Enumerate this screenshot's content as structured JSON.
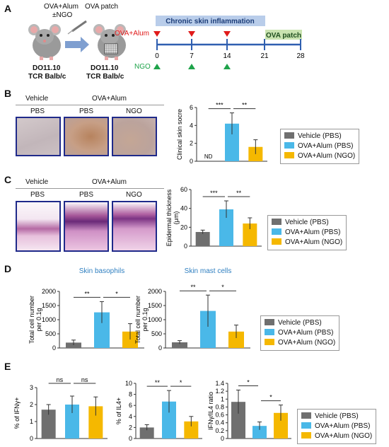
{
  "colors": {
    "vehicle": "#6f6f6f",
    "ova_pbs": "#4ab8e8",
    "ova_ngo": "#f5b800",
    "timeline_blue": "#2f5fb0",
    "band": "#b9cdea",
    "ova_patch_band": "#c9e3b0",
    "red_marker": "#e01b1b",
    "green_marker": "#1ea34a",
    "photo_border": "#1f2a8a"
  },
  "panelA": {
    "letter": "A",
    "mouse_left_top1": "OVA+Alum",
    "mouse_left_top2": "±NGO",
    "mouse_right_top": "OVA patch",
    "mouse_left_bottom1": "DO11.10",
    "mouse_left_bottom2": "TCR Balb/c",
    "mouse_right_bottom1": "DO11.10",
    "mouse_right_bottom2": "TCR Balb/c",
    "band_label": "Chronic skin inflammation",
    "patch_label": "OVA patch",
    "ova_alum_label": "OVA+Alum",
    "ngo_label": "NGO",
    "ticks": [
      "0",
      "7",
      "14",
      "21",
      "28"
    ]
  },
  "panelB": {
    "letter": "B",
    "vehicle": "Vehicle",
    "ovaalum": "OVA+Alum",
    "pbs1": "PBS",
    "pbs2": "PBS",
    "ngo": "NGO",
    "nd": "ND"
  },
  "panelC": {
    "letter": "C",
    "vehicle": "Vehicle",
    "ovaalum": "OVA+Alum",
    "pbs1": "PBS",
    "pbs2": "PBS",
    "ngo": "NGO"
  },
  "panelD": {
    "letter": "D"
  },
  "panelE": {
    "letter": "E"
  },
  "legend": {
    "entries": [
      "Vehicle (PBS)",
      "OVA+Alum (PBS)",
      "OVA+Alum (NGO)"
    ]
  },
  "chart_data": [
    {
      "id": "B",
      "type": "bar",
      "categories": [
        "Vehicle (PBS)",
        "OVA+Alum (PBS)",
        "OVA+Alum (NGO)"
      ],
      "values": [
        0,
        4.2,
        1.6
      ],
      "errors": [
        0,
        1.2,
        0.8
      ],
      "title": "",
      "xlabel": "",
      "ylabel": "Clinical skin socre",
      "ylim": [
        0,
        6
      ],
      "yticks": [
        "0",
        "2",
        "4",
        "6"
      ],
      "sig": [
        {
          "from": 0,
          "to": 1,
          "label": "***"
        },
        {
          "from": 1,
          "to": 2,
          "label": "**"
        }
      ],
      "annotations": [
        {
          "bar": 0,
          "text": "ND"
        }
      ]
    },
    {
      "id": "C",
      "type": "bar",
      "categories": [
        "Vehicle (PBS)",
        "OVA+Alum (PBS)",
        "OVA+Alum (NGO)"
      ],
      "values": [
        15,
        39,
        24
      ],
      "errors": [
        2,
        9,
        6
      ],
      "title": "",
      "xlabel": "",
      "ylabel": "Epidermal thickness (μm)",
      "ylim": [
        0,
        60
      ],
      "yticks": [
        "0",
        "20",
        "40",
        "60"
      ],
      "sig": [
        {
          "from": 0,
          "to": 1,
          "label": "***"
        },
        {
          "from": 1,
          "to": 2,
          "label": "**"
        }
      ]
    },
    {
      "id": "D1",
      "type": "bar",
      "categories": [
        "Vehicle (PBS)",
        "OVA+Alum (PBS)",
        "OVA+Alum (NGO)"
      ],
      "values": [
        190,
        1260,
        580
      ],
      "errors": [
        90,
        380,
        280
      ],
      "title": "Skin basophils",
      "xlabel": "",
      "ylabel": "Total cell number per 0.1g",
      "ylim": [
        0,
        2000
      ],
      "yticks": [
        "0",
        "500",
        "1000",
        "1500",
        "2000"
      ],
      "sig": [
        {
          "from": 0,
          "to": 1,
          "label": "**"
        },
        {
          "from": 1,
          "to": 2,
          "label": "*"
        }
      ]
    },
    {
      "id": "D2",
      "type": "bar",
      "categories": [
        "Vehicle (PBS)",
        "OVA+Alum (PBS)",
        "OVA+Alum (NGO)"
      ],
      "values": [
        200,
        1310,
        580
      ],
      "errors": [
        60,
        560,
        230
      ],
      "title": "Skin mast cells",
      "xlabel": "",
      "ylabel": "Total cell number per 0.1g",
      "ylim": [
        0,
        2000
      ],
      "yticks": [
        "0",
        "500",
        "1000",
        "1500",
        "2000"
      ],
      "sig": [
        {
          "from": 0,
          "to": 1,
          "label": "**"
        },
        {
          "from": 1,
          "to": 2,
          "label": "*"
        }
      ]
    },
    {
      "id": "E1",
      "type": "bar",
      "categories": [
        "Vehicle (PBS)",
        "OVA+Alum (PBS)",
        "OVA+Alum (NGO)"
      ],
      "values": [
        1.7,
        2.0,
        1.9
      ],
      "errors": [
        0.3,
        0.5,
        0.55
      ],
      "title": "",
      "xlabel": "",
      "ylabel": "% of IFNγ+",
      "ylim": [
        0,
        3
      ],
      "yticks": [
        "0",
        "1",
        "2",
        "3"
      ],
      "sig": [
        {
          "from": 0,
          "to": 1,
          "label": "ns"
        },
        {
          "from": 1,
          "to": 2,
          "label": "ns"
        }
      ]
    },
    {
      "id": "E2",
      "type": "bar",
      "categories": [
        "Vehicle (PBS)",
        "OVA+Alum (PBS)",
        "OVA+Alum (NGO)"
      ],
      "values": [
        2.0,
        6.7,
        3.1
      ],
      "errors": [
        0.5,
        2.0,
        0.9
      ],
      "title": "",
      "xlabel": "",
      "ylabel": "% of IL4+",
      "ylim": [
        0,
        10
      ],
      "yticks": [
        "0",
        "2",
        "4",
        "6",
        "8",
        "10"
      ],
      "sig": [
        {
          "from": 0,
          "to": 1,
          "label": "**"
        },
        {
          "from": 1,
          "to": 2,
          "label": "*"
        }
      ]
    },
    {
      "id": "E3",
      "type": "bar",
      "categories": [
        "Vehicle (PBS)",
        "OVA+Alum (PBS)",
        "OVA+Alum (NGO)"
      ],
      "values": [
        0.93,
        0.32,
        0.65
      ],
      "errors": [
        0.3,
        0.1,
        0.2
      ],
      "title": "",
      "xlabel": "",
      "ylabel": "IFNγ/IL4 ratio",
      "ylim": [
        0,
        1.4
      ],
      "yticks": [
        "0",
        "0.2",
        "0.4",
        "0.6",
        "0.8",
        "1",
        "1.2",
        "1.4"
      ],
      "sig": [
        {
          "from": 0,
          "to": 1,
          "label": "*"
        },
        {
          "from": 1,
          "to": 2,
          "label": "*"
        }
      ]
    }
  ]
}
